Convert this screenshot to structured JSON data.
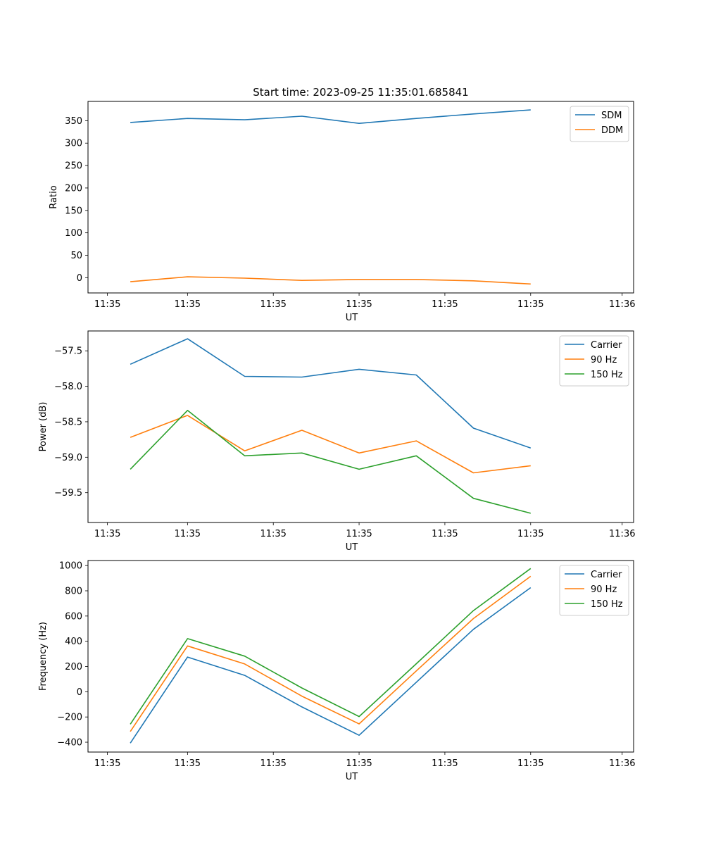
{
  "chart_data": [
    {
      "type": "line",
      "title": "Start time: 2023-09-25 11:35:01.685841",
      "xlabel": "UT",
      "ylabel": "Ratio",
      "xticks": [
        "11:35",
        "11:35",
        "11:35",
        "11:35",
        "11:35",
        "11:35",
        "11:36"
      ],
      "yticks": [
        0,
        50,
        100,
        150,
        200,
        250,
        300,
        350
      ],
      "xlim": [
        -0.37,
        4.4
      ],
      "ylim": [
        -34,
        393
      ],
      "legend": "top-right",
      "series": [
        {
          "name": "SDM",
          "color": "#1f77b4",
          "x": [
            0,
            0.5,
            1,
            1.5,
            2,
            2.5,
            3,
            3.5
          ],
          "values": [
            346,
            355,
            352,
            360,
            344,
            355,
            365,
            374
          ]
        },
        {
          "name": "DDM",
          "color": "#ff7f0e",
          "x": [
            0,
            0.5,
            1,
            1.5,
            2,
            2.5,
            3,
            3.5
          ],
          "values": [
            -9,
            2,
            -1,
            -6,
            -4,
            -4,
            -7,
            -14
          ]
        }
      ]
    },
    {
      "type": "line",
      "title": "",
      "xlabel": "UT",
      "ylabel": "Power (dB)",
      "xticks": [
        "11:35",
        "11:35",
        "11:35",
        "11:35",
        "11:35",
        "11:35",
        "11:36"
      ],
      "yticks": [
        -57.5,
        -58.0,
        -58.5,
        -59.0,
        -59.5
      ],
      "ylim": [
        -59.92,
        -57.22
      ],
      "legend": "top-right",
      "series": [
        {
          "name": "Carrier",
          "color": "#1f77b4",
          "x": [
            0,
            0.5,
            1,
            1.5,
            2,
            2.5,
            3,
            3.5
          ],
          "values": [
            -57.69,
            -57.33,
            -57.86,
            -57.87,
            -57.76,
            -57.84,
            -58.59,
            -58.87
          ]
        },
        {
          "name": "90 Hz",
          "color": "#ff7f0e",
          "x": [
            0,
            0.5,
            1,
            1.5,
            2,
            2.5,
            3,
            3.5
          ],
          "values": [
            -58.72,
            -58.41,
            -58.91,
            -58.62,
            -58.94,
            -58.77,
            -59.22,
            -59.12
          ]
        },
        {
          "name": "150 Hz",
          "color": "#2ca02c",
          "x": [
            0,
            0.5,
            1,
            1.5,
            2,
            2.5,
            3,
            3.5
          ],
          "values": [
            -59.17,
            -58.34,
            -58.98,
            -58.94,
            -59.17,
            -58.98,
            -59.58,
            -59.79
          ]
        }
      ]
    },
    {
      "type": "line",
      "title": "",
      "xlabel": "UT",
      "ylabel": "Frequency (Hz)",
      "xticks": [
        "11:35",
        "11:35",
        "11:35",
        "11:35",
        "11:35",
        "11:35",
        "11:36"
      ],
      "yticks": [
        1000,
        800,
        600,
        400,
        200,
        0,
        -200,
        -400
      ],
      "ylim": [
        -478,
        1040
      ],
      "legend": "top-right",
      "series": [
        {
          "name": "Carrier",
          "color": "#1f77b4",
          "x": [
            0,
            0.5,
            1,
            1.5,
            2,
            2.5,
            3,
            3.5
          ],
          "values": [
            -407,
            275,
            130,
            -120,
            -345,
            75,
            495,
            825
          ]
        },
        {
          "name": "90 Hz",
          "color": "#ff7f0e",
          "x": [
            0,
            0.5,
            1,
            1.5,
            2,
            2.5,
            3,
            3.5
          ],
          "values": [
            -315,
            363,
            220,
            -35,
            -255,
            165,
            580,
            915
          ]
        },
        {
          "name": "150 Hz",
          "color": "#2ca02c",
          "x": [
            0,
            0.5,
            1,
            1.5,
            2,
            2.5,
            3,
            3.5
          ],
          "values": [
            -257,
            421,
            282,
            30,
            -197,
            222,
            643,
            977
          ]
        }
      ]
    }
  ]
}
